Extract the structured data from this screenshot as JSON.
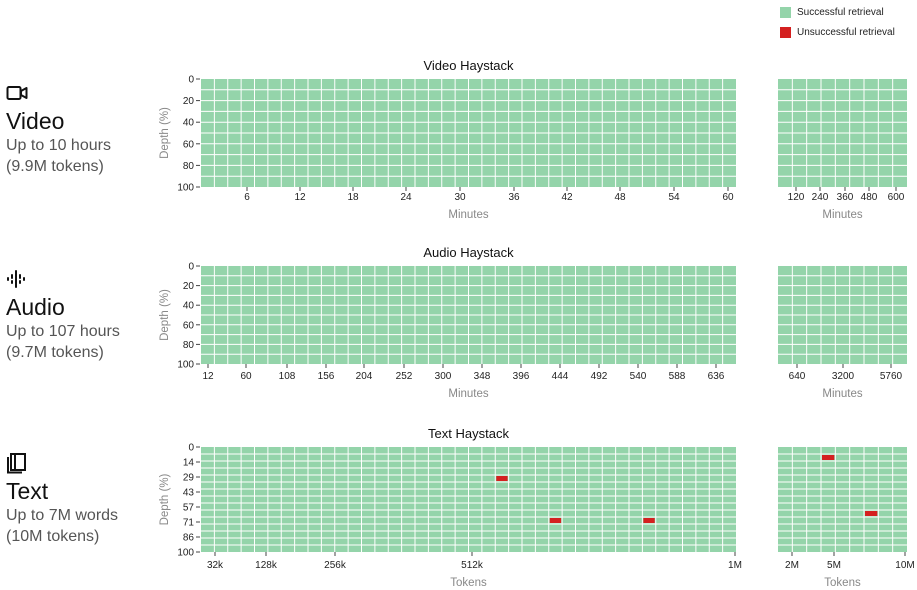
{
  "legend": {
    "success": {
      "label": "Successful retrieval",
      "color": "#94d4aa"
    },
    "fail": {
      "label": "Unsuccessful retrieval",
      "color": "#d42020"
    }
  },
  "modalities": [
    {
      "icon": "video-camera-icon",
      "name": "Video",
      "line1": "Up to 10 hours",
      "line2": "(9.9M tokens)"
    },
    {
      "icon": "audio-waveform-icon",
      "name": "Audio",
      "line1": "Up to 107 hours",
      "line2": "(9.7M tokens)"
    },
    {
      "icon": "book-icon",
      "name": "Text",
      "line1": "Up to 7M words",
      "line2": "(10M tokens)"
    }
  ],
  "chart_data": [
    {
      "type": "heatmap",
      "title": "Video Haystack",
      "ylabel": "Depth (%)",
      "y_ticks": [
        "0",
        "20",
        "40",
        "60",
        "80",
        "100"
      ],
      "panels": [
        {
          "xlabel": "Minutes",
          "x_ticks": [
            "6",
            "12",
            "18",
            "24",
            "30",
            "36",
            "42",
            "48",
            "54",
            "60"
          ],
          "columns": 40,
          "rows": 10,
          "failures": []
        },
        {
          "xlabel": "Minutes",
          "x_ticks": [
            "120",
            "240",
            "360",
            "480",
            "600"
          ],
          "columns": 9,
          "rows": 10,
          "failures": []
        }
      ]
    },
    {
      "type": "heatmap",
      "title": "Audio Haystack",
      "ylabel": "Depth (%)",
      "y_ticks": [
        "0",
        "20",
        "40",
        "60",
        "80",
        "100"
      ],
      "panels": [
        {
          "xlabel": "Minutes",
          "x_ticks": [
            "12",
            "60",
            "108",
            "156",
            "204",
            "252",
            "300",
            "348",
            "396",
            "444",
            "492",
            "540",
            "588",
            "636"
          ],
          "columns": 40,
          "rows": 10,
          "failures": []
        },
        {
          "xlabel": "Minutes",
          "x_ticks": [
            "640",
            "3200",
            "5760"
          ],
          "columns": 9,
          "rows": 10,
          "failures": []
        }
      ]
    },
    {
      "type": "heatmap",
      "title": "Text Haystack",
      "ylabel": "Depth (%)",
      "y_ticks": [
        "0",
        "14",
        "29",
        "43",
        "57",
        "71",
        "86",
        "100"
      ],
      "panels": [
        {
          "xlabel": "Tokens",
          "x_ticks": [
            "32k",
            "128k",
            "256k",
            "512k",
            "1M"
          ],
          "columns": 40,
          "rows": 15,
          "failures": [
            [
              22,
              4
            ],
            [
              26,
              10
            ],
            [
              33,
              10
            ]
          ]
        },
        {
          "xlabel": "Tokens",
          "x_ticks": [
            "2M",
            "5M",
            "10M"
          ],
          "columns": 9,
          "rows": 15,
          "failures": [
            [
              3,
              1
            ],
            [
              6,
              9
            ]
          ]
        }
      ]
    }
  ]
}
